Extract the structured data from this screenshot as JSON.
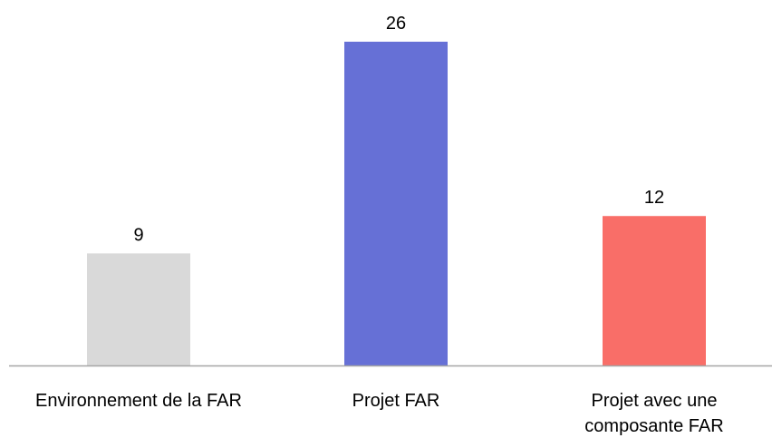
{
  "chart_data": {
    "type": "bar",
    "categories": [
      [
        "Environnement de la  FAR"
      ],
      [
        "Projet FAR"
      ],
      [
        "Projet avec une",
        "composante FAR"
      ]
    ],
    "values": [
      9,
      26,
      12
    ],
    "value_labels": [
      "9",
      "26",
      "12"
    ],
    "colors": [
      "#d9d9d9",
      "#6670d6",
      "#f96e68"
    ],
    "axis_color": "#a6a6a6",
    "title": "",
    "xlabel": "",
    "ylabel": "",
    "ylim": [
      0,
      26
    ],
    "grid": false,
    "legend": "none"
  }
}
